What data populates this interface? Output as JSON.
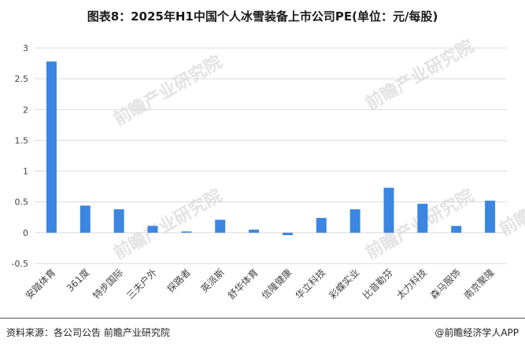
{
  "chart_data": {
    "type": "bar",
    "title": "图表8：2025年H1中国个人冰雪装备上市公司PE(单位：元/每股)",
    "categories": [
      "安踏体育",
      "361度",
      "特步国际",
      "三夫户外",
      "探路者",
      "英派斯",
      "舒华体育",
      "信隆健康",
      "华立科技",
      "彩蝶实业",
      "比音勒芬",
      "太力科技",
      "森马服饰",
      "南京聚隆"
    ],
    "values": [
      2.78,
      0.44,
      0.38,
      0.11,
      0.02,
      0.21,
      0.05,
      -0.04,
      0.24,
      0.38,
      0.73,
      0.47,
      0.11,
      0.52
    ],
    "ylim": [
      -0.5,
      3
    ],
    "yticks": [
      -0.5,
      0,
      0.5,
      1,
      1.5,
      2,
      2.5,
      3
    ],
    "ytick_labels": [
      "-0.5",
      "0",
      "0.5",
      "1",
      "1.5",
      "2",
      "2.5",
      "3"
    ],
    "grid": true,
    "bar_color": "#3b86e0",
    "grid_color": "#d9d9d9"
  },
  "footer": {
    "source": "资料来源：各公司公告 前瞻产业研究院",
    "brand": "@前瞻经济学人APP"
  },
  "watermark": {
    "text": "前瞻产业研究院"
  }
}
